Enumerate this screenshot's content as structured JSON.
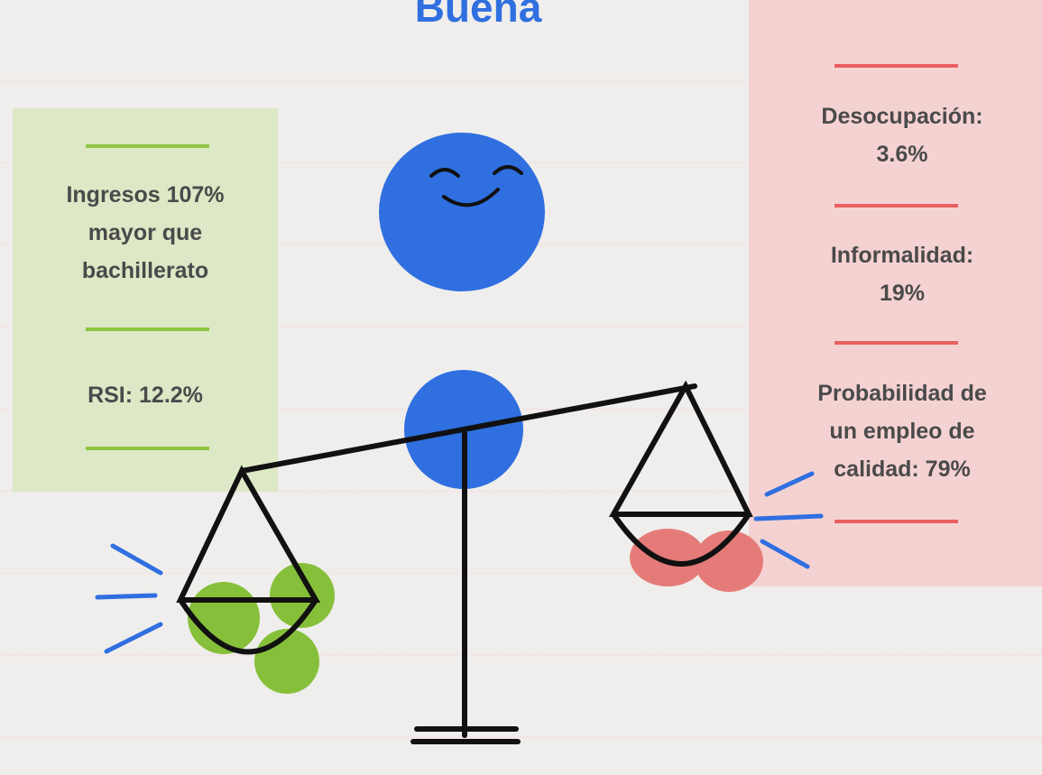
{
  "title": "Buena",
  "left_panel": {
    "items": [
      {
        "lines": [
          "Ingresos 107%",
          "mayor que",
          "bachillerato"
        ]
      },
      {
        "lines": [
          "RSI: 12.2%"
        ]
      }
    ]
  },
  "right_panel": {
    "items": [
      {
        "lines": [
          "Desocupación:",
          "3.6%"
        ]
      },
      {
        "lines": [
          "Informalidad:",
          "19%"
        ]
      },
      {
        "lines": [
          "Probabilidad de",
          "un empleo de",
          "calidad: 79%"
        ]
      }
    ]
  }
}
